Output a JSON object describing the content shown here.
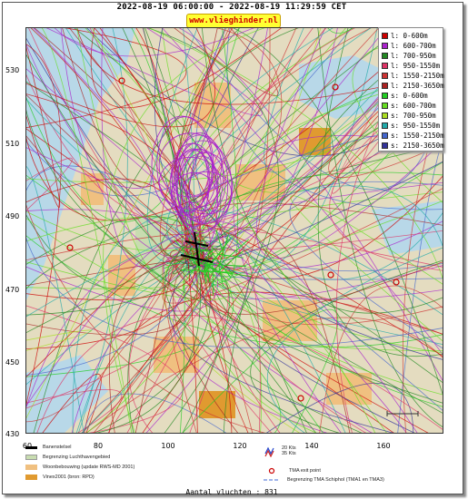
{
  "header": {
    "title": "2022-08-19 06:00:00 - 2022-08-19 11:29:59 CET",
    "brand": "www.vlieghinder.nl"
  },
  "axes": {
    "y_ticks": [
      "530",
      "510",
      "490",
      "470",
      "450",
      "430"
    ],
    "x_ticks": [
      "60",
      "80",
      "100",
      "120",
      "140",
      "160"
    ]
  },
  "legend": {
    "items": [
      {
        "label": "l: 0-600m",
        "color": "#cc0000"
      },
      {
        "label": "l: 600-700m",
        "color": "#aa22cc"
      },
      {
        "label": "l: 700-950m",
        "color": "#228822"
      },
      {
        "label": "l: 950-1550m",
        "color": "#dd3366"
      },
      {
        "label": "l: 1550-2150m",
        "color": "#cc3333"
      },
      {
        "label": "l: 2150-3650m",
        "color": "#aa2222"
      },
      {
        "label": "s: 0-600m",
        "color": "#22cc22"
      },
      {
        "label": "s: 600-700m",
        "color": "#66dd22"
      },
      {
        "label": "s: 700-950m",
        "color": "#aadd22"
      },
      {
        "label": "s: 950-1550m",
        "color": "#22aaaa"
      },
      {
        "label": "s: 1550-2150m",
        "color": "#4466cc"
      },
      {
        "label": "s: 2150-3650m",
        "color": "#333399"
      }
    ]
  },
  "key": {
    "runway": "Banenstelsel",
    "airport_boundary": "Begrenzing Luchthavengebied",
    "housing": "Woonbebouwing (update RWS-MD 2001)",
    "vinex": "Vinex2001 (bron: RPD)",
    "wind_20": "20 Kts",
    "wind_35": "35 Kts",
    "tma_exit": "TMA exit point",
    "tma_boundary": "Begrenzing TMA Schiphol  (TMA1 en TMA3)"
  },
  "footer": {
    "count": "Aantal vluchten : 831"
  },
  "colors": {
    "sea": "#b8d8e8",
    "land": "#e4dcc0",
    "housing": "#f0c080",
    "vinex": "#e09a30",
    "accent_yellow": "#ffff33"
  }
}
